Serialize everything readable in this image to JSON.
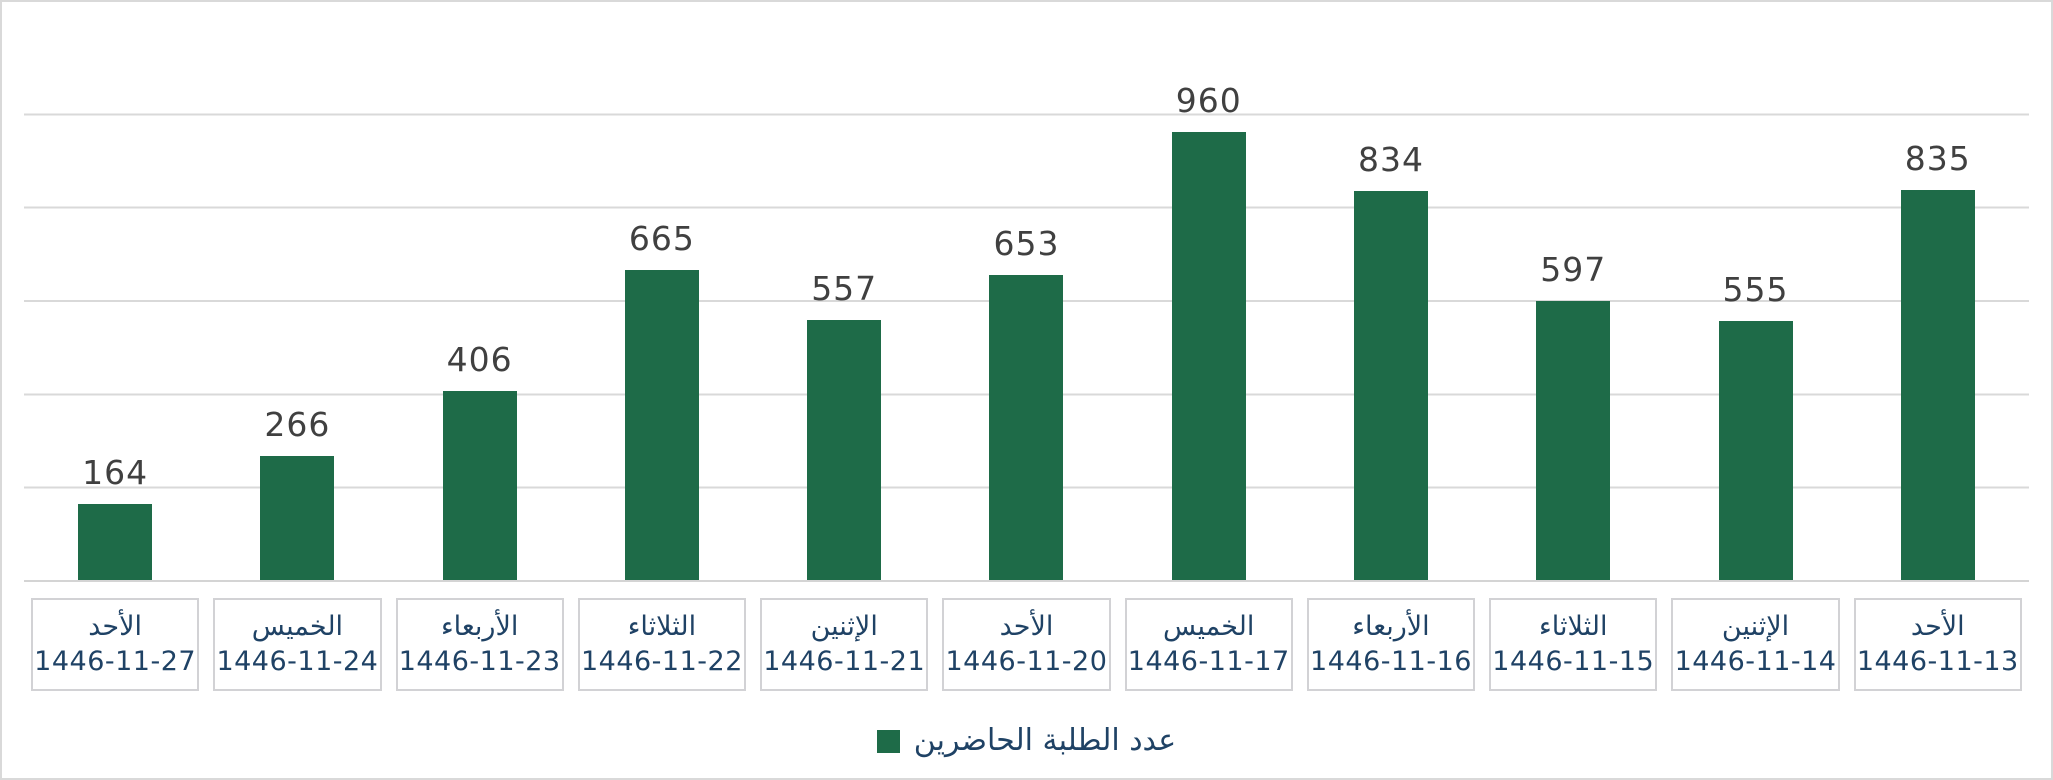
{
  "chart_data": {
    "type": "bar",
    "title": "",
    "series_name": "عدد الطلبة الحاضرين",
    "legend_position": "bottom",
    "grid": true,
    "y_axis_tick_labels_visible": false,
    "ylim": [
      0,
      1200
    ],
    "gridline_step": 200,
    "direction": "rtl",
    "bar_color": "#1e6b48",
    "categories": [
      "الأحد 1446-11-27",
      "الخميس 1446-11-24",
      "الأربعاء 1446-11-23",
      "الثلاثاء 1446-11-22",
      "الإثنين 1446-11-21",
      "الأحد 1446-11-20",
      "الخميس 1446-11-17",
      "الأربعاء 1446-11-16",
      "الثلاثاء 1446-11-15",
      "الإثنين 1446-11-14",
      "الأحد 1446-11-13"
    ],
    "values": [
      164,
      266,
      406,
      665,
      557,
      653,
      960,
      834,
      597,
      555,
      835
    ],
    "points": [
      {
        "day": "الأحد",
        "date": "1446-11-27",
        "value": 164
      },
      {
        "day": "الخميس",
        "date": "1446-11-24",
        "value": 266
      },
      {
        "day": "الأربعاء",
        "date": "1446-11-23",
        "value": 406
      },
      {
        "day": "الثلاثاء",
        "date": "1446-11-22",
        "value": 665
      },
      {
        "day": "الإثنين",
        "date": "1446-11-21",
        "value": 557
      },
      {
        "day": "الأحد",
        "date": "1446-11-20",
        "value": 653
      },
      {
        "day": "الخميس",
        "date": "1446-11-17",
        "value": 960
      },
      {
        "day": "الأربعاء",
        "date": "1446-11-16",
        "value": 834
      },
      {
        "day": "الثلاثاء",
        "date": "1446-11-15",
        "value": 597
      },
      {
        "day": "الإثنين",
        "date": "1446-11-14",
        "value": 555
      },
      {
        "day": "الأحد",
        "date": "1446-11-13",
        "value": 835
      }
    ]
  },
  "legend": {
    "label": "عدد الطلبة الحاضرين",
    "swatch_color": "#1e6b48"
  },
  "colors": {
    "bar_green": "#1e6b48",
    "label_navy": "#1f4265",
    "value_gray": "#404040",
    "gridline_gray": "#d9d9d9",
    "box_border_gray": "#d2d2d5",
    "widget_border_gray": "#d9d9d9",
    "background": "#ffffff"
  }
}
